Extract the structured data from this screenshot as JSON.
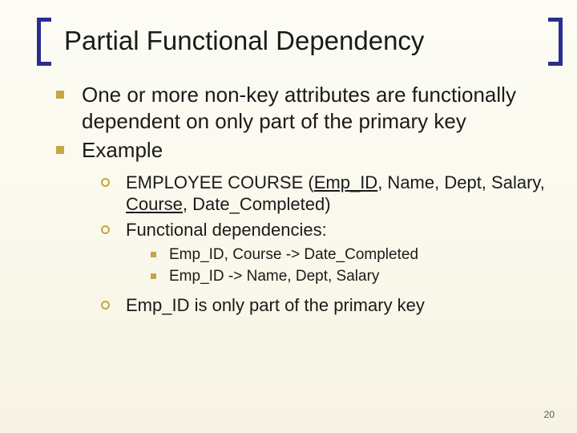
{
  "title": "Partial Functional Dependency",
  "bullets": {
    "b1": "One or more non-key attributes are functionally dependent on only part of the primary key",
    "b2": "Example",
    "s1_pre": "EMPLOYEE COURSE (",
    "s1_emp": "Emp_ID",
    "s1_mid": ", Name, Dept, Salary, ",
    "s1_course": "Course",
    "s1_post": ", Date_Completed)",
    "s2": "Functional dependencies:",
    "fd1": "Emp_ID, Course -> Date_Completed",
    "fd2": "Emp_ID -> Name, Dept, Salary",
    "s3": "Emp_ID is only part of the primary key"
  },
  "page_number": "20",
  "colors": {
    "bracket": "#2a2d8f",
    "bullet": "#c5a642",
    "text": "#1a1a1a",
    "bg_top": "#fdfcf5",
    "bg_bottom": "#f7f4e4"
  },
  "fonts": {
    "title_size": 33,
    "lvl1_size": 26,
    "lvl2_size": 22,
    "lvl3_size": 19
  }
}
